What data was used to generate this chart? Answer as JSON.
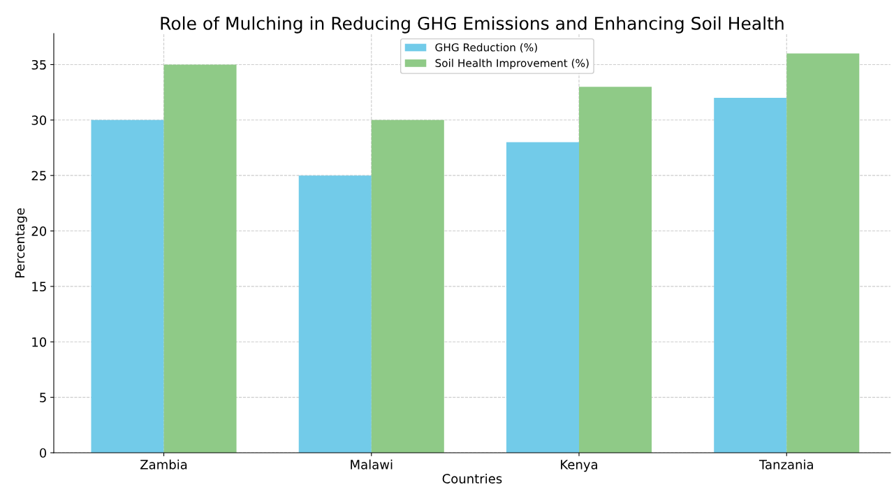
{
  "chart_data": {
    "type": "bar",
    "title": "Role of Mulching in Reducing GHG Emissions and Enhancing Soil Health",
    "xlabel": "Countries",
    "ylabel": "Percentage",
    "categories": [
      "Zambia",
      "Malawi",
      "Kenya",
      "Tanzania"
    ],
    "series": [
      {
        "name": "GHG Reduction (%)",
        "color": "#72cbe9",
        "values": [
          30,
          25,
          28,
          32
        ]
      },
      {
        "name": "Soil Health Improvement (%)",
        "color": "#8fca87",
        "values": [
          35,
          30,
          33,
          36
        ]
      }
    ],
    "ylim": [
      0,
      37.8
    ],
    "yticks": [
      0,
      5,
      10,
      15,
      20,
      25,
      30,
      35
    ],
    "grid": true,
    "legend": "top"
  }
}
